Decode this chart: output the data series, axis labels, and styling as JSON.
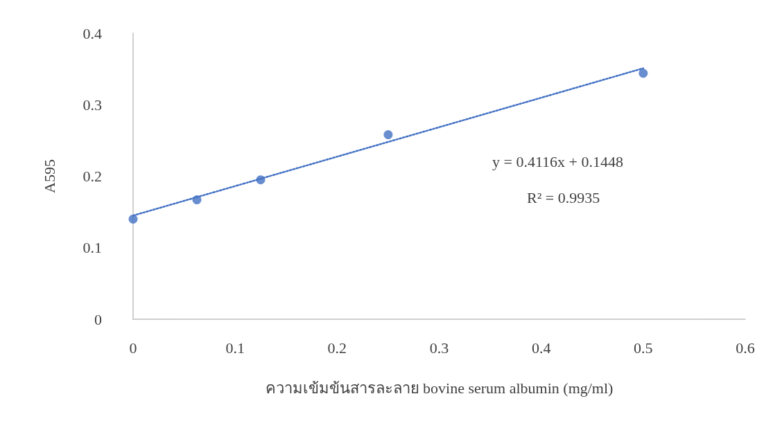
{
  "chart_data": {
    "type": "scatter",
    "xlabel": "ความเข้มข้นสารละลาย bovine serum albumin (mg/ml)",
    "ylabel": "A595",
    "x": [
      0,
      0.0625,
      0.125,
      0.25,
      0.5
    ],
    "series": [
      {
        "color": "#4472c4",
        "values": [
          0.14,
          0.167,
          0.195,
          0.258,
          0.344
        ]
      },
      {
        "type": "line",
        "color": "#4472c4",
        "x": [
          0,
          0.5
        ],
        "values": [
          0.145,
          0.351
        ],
        "line_style": "dotted",
        "marker": "none"
      }
    ],
    "xlim": [
      0,
      0.6
    ],
    "xticks": [
      0,
      0.1,
      0.2,
      0.3,
      0.4,
      0.5,
      0.6
    ],
    "ylim": [
      0,
      0.4
    ],
    "yticks": [
      0,
      0.1,
      0.2,
      0.3,
      0.4
    ],
    "marker": "circle",
    "grid": false,
    "annotations": [
      "y = 0.4116x + 0.1448",
      "R² = 0.9935"
    ]
  }
}
